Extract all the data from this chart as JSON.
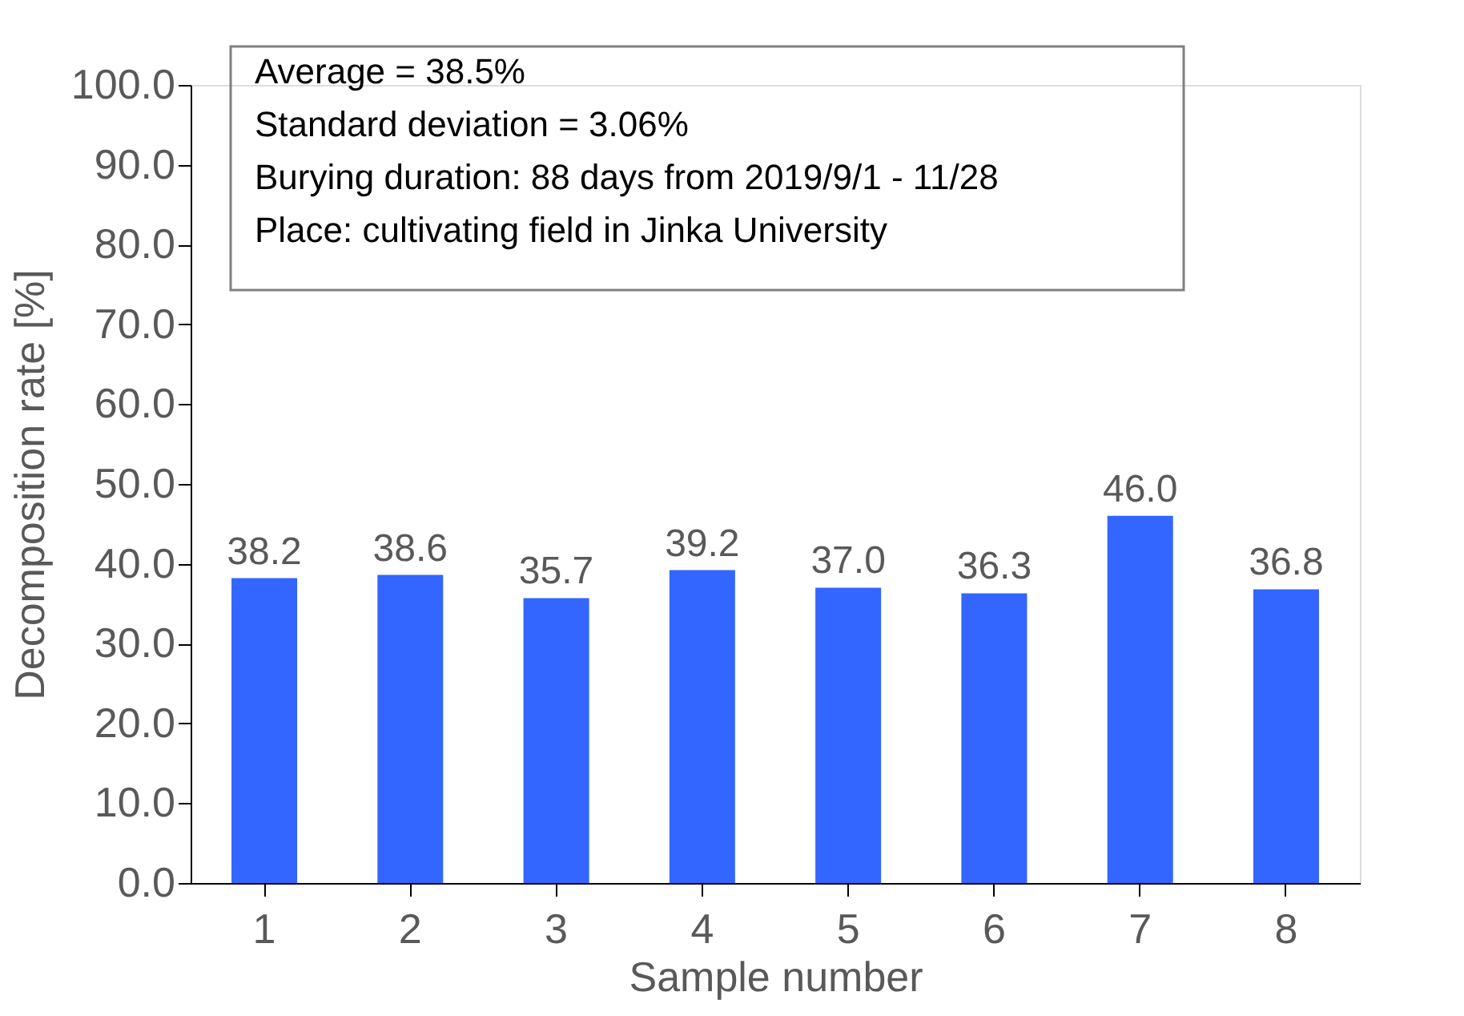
{
  "chart_data": {
    "type": "bar",
    "xlabel": "Sample  number",
    "ylabel": "Decomposition rate [%]",
    "categories": [
      "1",
      "2",
      "3",
      "4",
      "5",
      "6",
      "7",
      "8"
    ],
    "values": [
      38.2,
      38.6,
      35.7,
      39.2,
      37.0,
      36.3,
      46.0,
      36.8
    ],
    "value_labels": [
      "38.2",
      "38.6",
      "35.7",
      "39.2",
      "37.0",
      "36.3",
      "46.0",
      "36.8"
    ],
    "color": "#3366ff",
    "ylim": [
      0,
      100
    ],
    "yticks": [
      {
        "value": 0,
        "label": "0.0"
      },
      {
        "value": 10,
        "label": "10.0"
      },
      {
        "value": 20,
        "label": "20.0"
      },
      {
        "value": 30,
        "label": "30.0"
      },
      {
        "value": 40,
        "label": "40.0"
      },
      {
        "value": 50,
        "label": "50.0"
      },
      {
        "value": 60,
        "label": "60.0"
      },
      {
        "value": 70,
        "label": "70.0"
      },
      {
        "value": 80,
        "label": "80.0"
      },
      {
        "value": 90,
        "label": "90.0"
      },
      {
        "value": 100,
        "label": "100.0"
      }
    ],
    "grid": false,
    "annotations": [
      "Average = 38.5%",
      "Standard deviation = 3.06%",
      "Burying duration:  88 days from 2019/9/1 - 11/28",
      "Place:  cultivating  field in Jinka University"
    ]
  }
}
